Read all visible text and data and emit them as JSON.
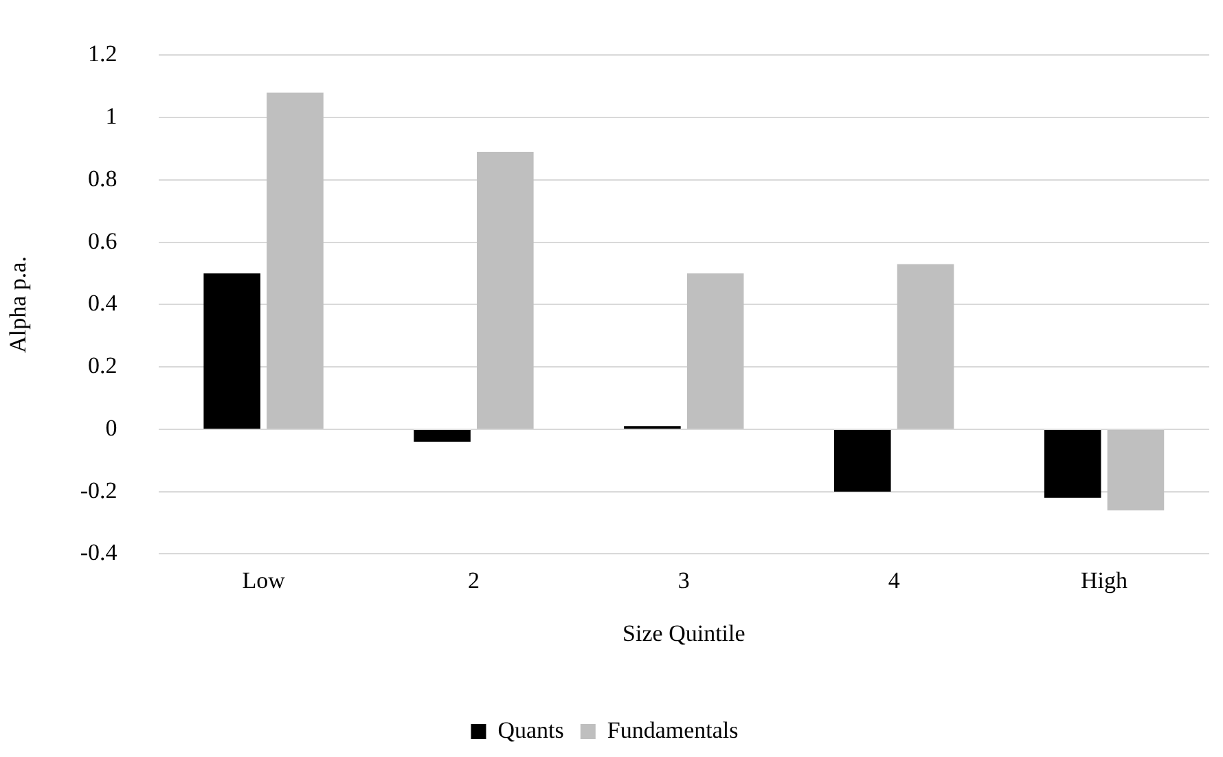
{
  "chart_data": {
    "type": "bar",
    "xlabel": "Size Quintile",
    "ylabel": "Alpha p.a.",
    "categories": [
      "Low",
      "2",
      "3",
      "4",
      "High"
    ],
    "series": [
      {
        "name": "Quants",
        "color": "#000000",
        "values": [
          0.5,
          -0.04,
          0.01,
          -0.2,
          -0.22
        ]
      },
      {
        "name": "Fundamentals",
        "color": "#bfbfbf",
        "values": [
          1.08,
          0.89,
          0.5,
          0.53,
          -0.26
        ]
      }
    ],
    "ylim": [
      -0.4,
      1.2
    ],
    "yticks": [
      -0.4,
      -0.2,
      0,
      0.2,
      0.4,
      0.6,
      0.8,
      1,
      1.2
    ],
    "grid": "y",
    "legend": "bottom"
  }
}
